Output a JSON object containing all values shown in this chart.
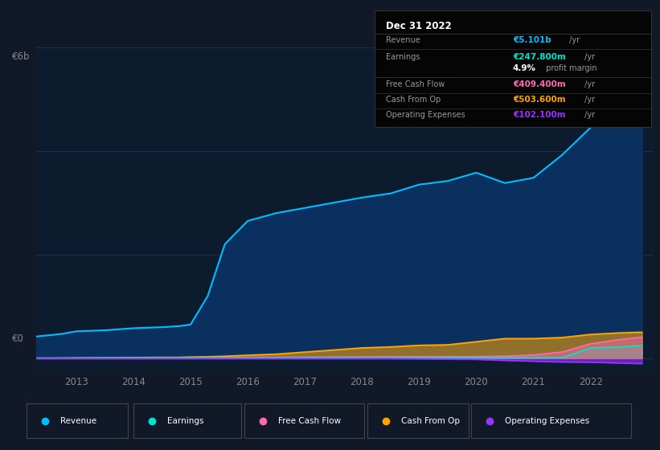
{
  "background_color": "#111827",
  "plot_bg_color": "#0d1b2e",
  "years": [
    2012.3,
    2012.75,
    2013.0,
    2013.5,
    2014.0,
    2014.5,
    2014.8,
    2015.0,
    2015.3,
    2015.6,
    2016.0,
    2016.5,
    2017.0,
    2017.5,
    2018.0,
    2018.5,
    2019.0,
    2019.5,
    2020.0,
    2020.5,
    2021.0,
    2021.5,
    2022.0,
    2022.5,
    2022.9
  ],
  "revenue": [
    0.42,
    0.47,
    0.52,
    0.54,
    0.58,
    0.6,
    0.62,
    0.65,
    1.2,
    2.2,
    2.65,
    2.8,
    2.9,
    3.0,
    3.1,
    3.18,
    3.35,
    3.42,
    3.58,
    3.38,
    3.48,
    3.92,
    4.45,
    4.85,
    5.1
  ],
  "earnings": [
    0.003,
    0.003,
    0.005,
    0.008,
    0.008,
    0.008,
    0.008,
    0.008,
    0.008,
    0.008,
    0.008,
    0.008,
    0.012,
    0.012,
    0.012,
    0.012,
    0.012,
    0.012,
    0.012,
    0.012,
    0.012,
    0.012,
    0.2,
    0.22,
    0.248
  ],
  "free_cash_flow": [
    0.001,
    0.001,
    0.002,
    0.003,
    0.006,
    0.006,
    0.006,
    0.006,
    0.01,
    0.012,
    0.015,
    0.018,
    0.022,
    0.025,
    0.028,
    0.03,
    0.032,
    0.032,
    0.032,
    0.04,
    0.065,
    0.12,
    0.28,
    0.36,
    0.409
  ],
  "cash_from_op": [
    0.003,
    0.005,
    0.008,
    0.01,
    0.015,
    0.018,
    0.018,
    0.025,
    0.03,
    0.04,
    0.06,
    0.08,
    0.12,
    0.16,
    0.2,
    0.22,
    0.25,
    0.26,
    0.32,
    0.38,
    0.38,
    0.4,
    0.46,
    0.49,
    0.504
  ],
  "operating_expenses": [
    -0.005,
    -0.005,
    -0.005,
    -0.005,
    -0.005,
    -0.005,
    -0.005,
    -0.005,
    -0.005,
    -0.005,
    -0.005,
    -0.005,
    -0.005,
    -0.005,
    -0.005,
    -0.005,
    -0.01,
    -0.015,
    -0.02,
    -0.04,
    -0.055,
    -0.07,
    -0.075,
    -0.09,
    -0.102
  ],
  "revenue_color": "#00bfff",
  "revenue_fill_color": "#0a3060",
  "earnings_color": "#00e5cc",
  "free_cash_flow_color": "#ff69b4",
  "cash_from_op_color": "#ffa500",
  "operating_expenses_color": "#9933ff",
  "grid_color": "#253a5a",
  "tick_labels": [
    "2013",
    "2014",
    "2015",
    "2016",
    "2017",
    "2018",
    "2019",
    "2020",
    "2021",
    "2022"
  ],
  "tick_positions": [
    2013,
    2014,
    2015,
    2016,
    2017,
    2018,
    2019,
    2020,
    2021,
    2022
  ],
  "ylim": [
    -0.25,
    6.0
  ],
  "xlim": [
    2012.3,
    2023.1
  ],
  "ylabel_top": "€6b",
  "ylabel_zero": "€0",
  "table_title": "Dec 31 2022",
  "table_rows": [
    {
      "label": "Revenue",
      "value": "€5.101b",
      "unit": " /yr",
      "color": "#00bfff",
      "bold": true
    },
    {
      "label": "Earnings",
      "value": "€247.800m",
      "unit": " /yr",
      "color": "#00e5cc",
      "bold": true
    },
    {
      "label": "",
      "value": "4.9%",
      "unit": " profit margin",
      "color": "white",
      "bold": true
    },
    {
      "label": "Free Cash Flow",
      "value": "€409.400m",
      "unit": " /yr",
      "color": "#ff69b4",
      "bold": true
    },
    {
      "label": "Cash From Op",
      "value": "€503.600m",
      "unit": " /yr",
      "color": "#ffa500",
      "bold": true
    },
    {
      "label": "Operating Expenses",
      "value": "€102.100m",
      "unit": " /yr",
      "color": "#9933ff",
      "bold": true
    }
  ],
  "legend_items": [
    "Revenue",
    "Earnings",
    "Free Cash Flow",
    "Cash From Op",
    "Operating Expenses"
  ],
  "legend_colors": [
    "#00bfff",
    "#00e5cc",
    "#ff69b4",
    "#ffa500",
    "#9933ff"
  ]
}
